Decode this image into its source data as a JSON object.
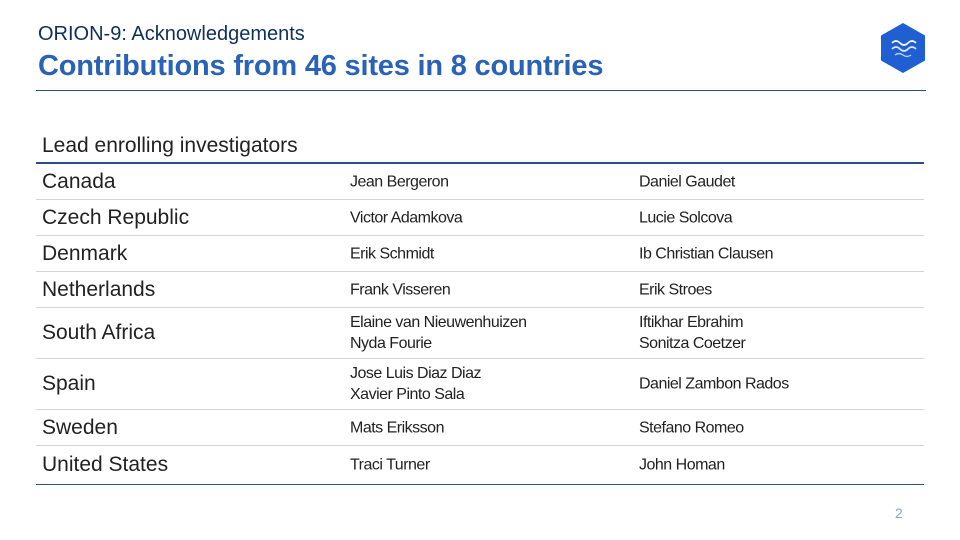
{
  "header": {
    "subtitle": "ORION-9: Acknowledgements",
    "title": "Contributions from 46 sites in 8 countries"
  },
  "section_heading": "Lead enrolling investigators",
  "rows": [
    {
      "country": "Canada",
      "col1": [
        "Jean Bergeron"
      ],
      "col2": [
        "Daniel Gaudet"
      ]
    },
    {
      "country": "Czech Republic",
      "col1": [
        "Victor Adamkova"
      ],
      "col2": [
        "Lucie Solcova"
      ]
    },
    {
      "country": "Denmark",
      "col1": [
        "Erik Schmidt"
      ],
      "col2": [
        "Ib Christian Clausen"
      ]
    },
    {
      "country": "Netherlands",
      "col1": [
        "Frank Visseren"
      ],
      "col2": [
        "Erik Stroes"
      ]
    },
    {
      "country": "South Africa",
      "col1": [
        "Elaine van Nieuwenhuizen",
        "Nyda Fourie"
      ],
      "col2": [
        "Iftikhar Ebrahim",
        "Sonitza Coetzer"
      ]
    },
    {
      "country": "Spain",
      "col1": [
        "Jose Luis Diaz Diaz",
        "Xavier Pinto Sala"
      ],
      "col2": [
        "Daniel Zambon Rados"
      ]
    },
    {
      "country": "Sweden",
      "col1": [
        "Mats Eriksson"
      ],
      "col2": [
        "Stefano Romeo"
      ]
    },
    {
      "country": "United States",
      "col1": [
        "Traci Turner"
      ],
      "col2": [
        "John Homan"
      ]
    }
  ],
  "page_number": "2",
  "colors": {
    "accent": "#2a62b8",
    "navy": "#0f2f5c",
    "rule": "#2a4f8c",
    "logo": "#1f5fd1"
  },
  "logo_icon": "brand-hexagon-icon"
}
